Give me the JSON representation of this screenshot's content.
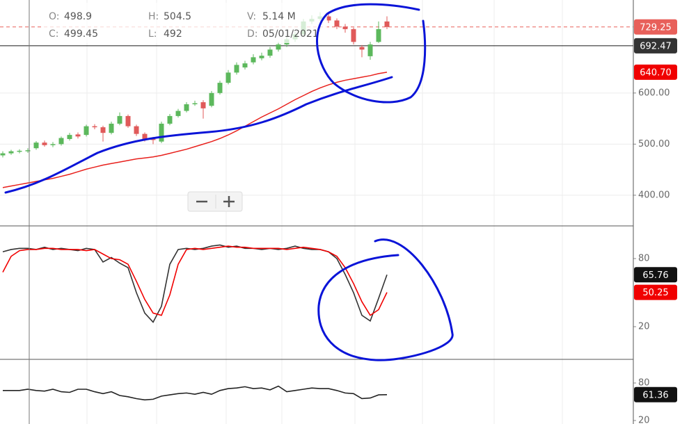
{
  "chart_data": [
    {
      "type": "candlestick",
      "open": [
        478,
        482,
        485,
        486,
        492,
        503,
        498,
        500,
        510,
        519,
        518,
        535,
        533,
        522,
        540,
        555,
        535,
        520,
        510,
        505,
        540,
        555,
        565,
        578,
        582,
        575,
        600,
        620,
        640,
        650,
        660,
        668,
        673,
        685,
        695,
        705,
        715,
        740,
        745,
        750,
        742,
        730,
        725,
        690,
        672,
        700,
        740
      ],
      "high": [
        486,
        489,
        490,
        492,
        506,
        507,
        504,
        515,
        522,
        523,
        538,
        539,
        536,
        544,
        562,
        558,
        538,
        523,
        514,
        544,
        559,
        569,
        582,
        585,
        586,
        604,
        624,
        645,
        660,
        663,
        676,
        679,
        690,
        700,
        710,
        720,
        745,
        752,
        758,
        755,
        746,
        735,
        728,
        694,
        700,
        740,
        750
      ],
      "low": [
        474,
        479,
        482,
        483,
        489,
        495,
        494,
        497,
        507,
        511,
        515,
        529,
        505,
        519,
        537,
        532,
        516,
        505,
        500,
        502,
        537,
        552,
        562,
        575,
        550,
        572,
        597,
        617,
        636,
        646,
        656,
        664,
        669,
        681,
        690,
        700,
        711,
        735,
        740,
        737,
        725,
        718,
        695,
        670,
        665,
        698,
        725
      ],
      "close": [
        482,
        486,
        487,
        488,
        503,
        498,
        500,
        512,
        518,
        515,
        535,
        533,
        522,
        540,
        555,
        535,
        520,
        510,
        508,
        540,
        555,
        565,
        578,
        580,
        570,
        600,
        620,
        640,
        655,
        658,
        670,
        673,
        685,
        695,
        705,
        715,
        740,
        745,
        750,
        742,
        730,
        725,
        700,
        685,
        695,
        725,
        729.25
      ],
      "up_color": "#5cb85c",
      "down_color": "#e05a5a",
      "overlays": [
        {
          "color": "#e8201c",
          "values": [
            415,
            418,
            421,
            424,
            427,
            430,
            433,
            437,
            441,
            446,
            451,
            455,
            459,
            462,
            465,
            468,
            471,
            473,
            475,
            478,
            482,
            486,
            490,
            495,
            500,
            505,
            511,
            518,
            526,
            535,
            544,
            553,
            561,
            569,
            578,
            587,
            595,
            603,
            610,
            616,
            621,
            625,
            628,
            631,
            634,
            638,
            640.7
          ]
        }
      ],
      "ylim": [
        340,
        782
      ],
      "yticks": [
        {
          "value": 400,
          "label": "400.00"
        },
        {
          "value": 500,
          "label": "500.00"
        },
        {
          "value": 600,
          "label": "600.00"
        }
      ],
      "grid": true,
      "tags": [
        {
          "value": 729.25,
          "label": "729.25",
          "color": "#e8605a"
        },
        {
          "value": 692.47,
          "label": "692.47",
          "color": "#333333"
        },
        {
          "value": 640.7,
          "label": "640.70",
          "color": "#f00000"
        }
      ],
      "info": [
        {
          "key": "O:",
          "text": "498.9"
        },
        {
          "key": "C:",
          "text": "499.45"
        },
        {
          "key": "H:",
          "text": "504.5"
        },
        {
          "key": "L:",
          "text": "492"
        },
        {
          "key": "V:",
          "text": "5.14 M"
        },
        {
          "key": "D:",
          "text": "05/01/2021"
        }
      ]
    },
    {
      "type": "line",
      "series": [
        {
          "color": "#333333",
          "values": [
            86,
            88,
            89,
            89,
            88,
            90,
            88,
            89,
            88,
            87,
            89,
            88,
            77,
            81,
            76,
            72,
            50,
            32,
            24,
            38,
            75,
            88,
            89,
            88,
            89,
            91,
            92,
            90,
            91,
            89,
            89,
            88,
            89,
            88,
            89,
            91,
            89,
            88,
            88,
            86,
            80,
            66,
            50,
            30,
            25,
            45,
            65.76
          ]
        },
        {
          "color": "#f00000",
          "values": [
            68,
            82,
            87,
            88,
            88,
            89,
            89,
            88,
            88,
            88,
            87,
            88,
            84,
            80,
            79,
            75,
            60,
            44,
            32,
            30,
            48,
            75,
            88,
            89,
            88,
            89,
            90,
            91,
            90,
            90,
            89,
            89,
            89,
            89,
            88,
            89,
            90,
            89,
            88,
            86,
            82,
            72,
            58,
            42,
            30,
            35,
            50.25
          ]
        }
      ],
      "ylim": [
        -8.8,
        108.8
      ],
      "yticks": [
        20,
        80
      ]
    },
    {
      "type": "line",
      "series": [
        {
          "color": "#222222",
          "values": [
            68,
            68,
            68,
            70,
            68,
            67,
            70,
            66,
            65,
            70,
            70,
            66,
            63,
            66,
            60,
            58,
            55,
            53,
            54,
            59,
            61,
            63,
            64,
            62,
            65,
            62,
            68,
            71,
            72,
            74,
            71,
            72,
            69,
            75,
            66,
            68,
            70,
            72,
            71,
            71,
            68,
            64,
            63,
            55,
            56,
            61,
            61.36
          ]
        }
      ],
      "ylim": [
        14.4,
        117.8
      ],
      "yticks": [
        20,
        80
      ]
    }
  ]
}
